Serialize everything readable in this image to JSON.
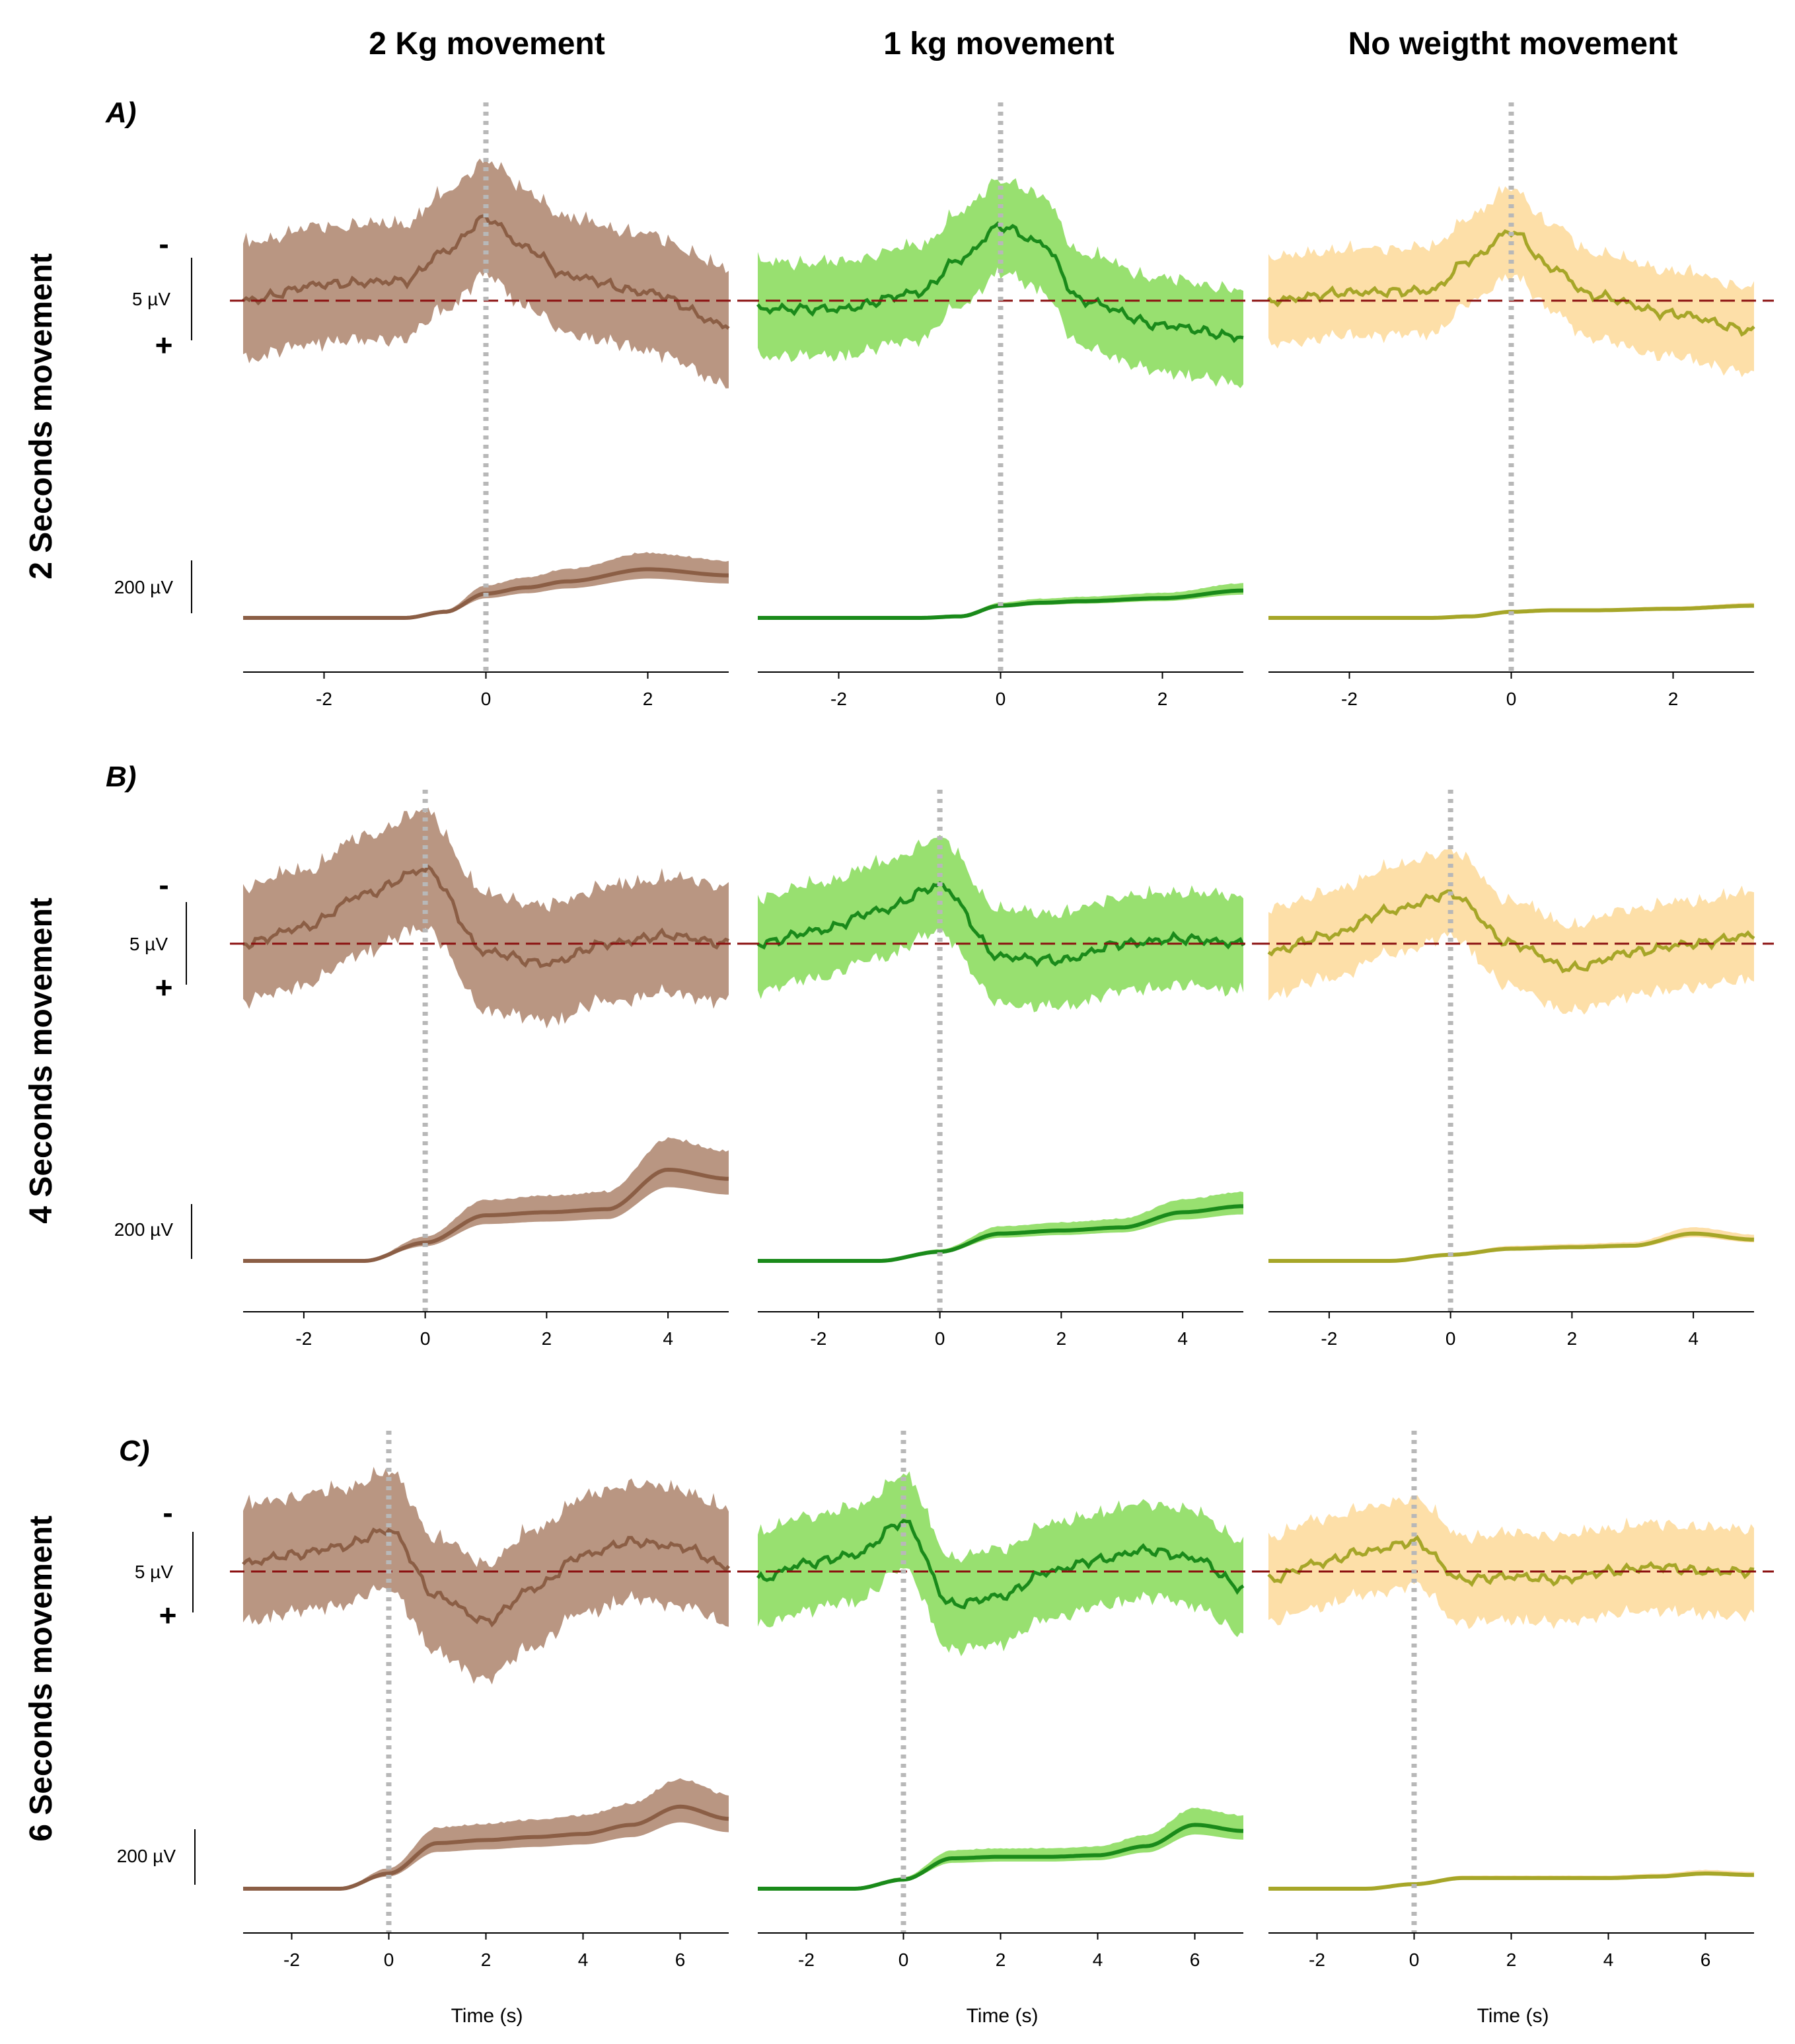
{
  "columns": [
    "2 Kg movement",
    "1 kg movement",
    "No weigtht movement"
  ],
  "rows": [
    {
      "panel": "A)",
      "title": "2 Seconds movement",
      "xlim": [
        -3,
        3
      ],
      "xticks": [
        -2,
        0,
        2
      ]
    },
    {
      "panel": "B)",
      "title": "4 Seconds movement",
      "xlim": [
        -3,
        5
      ],
      "xticks": [
        -2,
        0,
        2,
        4
      ]
    },
    {
      "panel": "C)",
      "title": "6 Seconds movement",
      "xlim": [
        -3,
        7
      ],
      "xticks": [
        -2,
        0,
        2,
        4,
        6
      ]
    }
  ],
  "labels": {
    "eeg_scale": "5 µV",
    "emg_scale": "200 µV",
    "neg_sign": "-",
    "pos_sign": "+",
    "xlabel": "Time (s)"
  },
  "colors": {
    "col0_line": "#8b5e45",
    "col0_band": "#b99682",
    "col1_line": "#1a8a1a",
    "col1_band": "#98e070",
    "col2_line": "#a6a628",
    "col2_band": "#fddfa8",
    "baseline": "#8b1010",
    "onset": "#b8b8b8"
  },
  "chart_data": [
    {
      "type": "line",
      "row": "2 Seconds movement",
      "column": "2 Kg movement",
      "x": [
        -3,
        -2,
        -1,
        -0.5,
        0,
        0.5,
        1,
        2,
        3
      ],
      "eeg_mean": [
        0,
        1,
        1.2,
        3,
        5,
        3.2,
        1.5,
        0.5,
        -1.5
      ],
      "emg_mean": [
        0,
        0,
        0,
        20,
        80,
        100,
        120,
        160,
        140
      ]
    },
    {
      "type": "line",
      "row": "2 Seconds movement",
      "column": "1 kg movement",
      "x": [
        -3,
        -2,
        -1,
        -0.5,
        0,
        0.5,
        1,
        2,
        3
      ],
      "eeg_mean": [
        -0.5,
        -0.5,
        0.5,
        2.5,
        4.5,
        3.5,
        0,
        -1.5,
        -2.2
      ],
      "emg_mean": [
        0,
        0,
        0,
        5,
        40,
        50,
        55,
        65,
        90
      ]
    },
    {
      "type": "line",
      "row": "2 Seconds movement",
      "column": "No weigtht movement",
      "x": [
        -3,
        -2,
        -1,
        -0.5,
        0,
        0.5,
        1,
        2,
        3
      ],
      "eeg_mean": [
        0,
        0.5,
        0.6,
        2.5,
        4.2,
        2,
        0.3,
        -0.8,
        -1.8
      ],
      "emg_mean": [
        0,
        0,
        0,
        5,
        20,
        25,
        25,
        30,
        40
      ]
    },
    {
      "type": "line",
      "row": "4 Seconds movement",
      "column": "2 Kg movement",
      "x": [
        -3,
        -2,
        -1,
        0,
        1,
        2,
        3,
        4,
        5
      ],
      "eeg_mean": [
        0,
        1,
        3,
        4.5,
        -0.5,
        -1.2,
        0,
        0.5,
        0
      ],
      "emg_mean": [
        0,
        0,
        0,
        60,
        150,
        160,
        170,
        300,
        270
      ]
    },
    {
      "type": "line",
      "row": "4 Seconds movement",
      "column": "1 kg movement",
      "x": [
        -3,
        -2,
        -1,
        0,
        1,
        2,
        3,
        4,
        5
      ],
      "eeg_mean": [
        0,
        0.8,
        2,
        3.5,
        -0.8,
        -1,
        0,
        0.3,
        0
      ],
      "emg_mean": [
        0,
        0,
        0,
        30,
        90,
        100,
        110,
        160,
        180
      ]
    },
    {
      "type": "line",
      "row": "4 Seconds movement",
      "column": "No weigtht movement",
      "x": [
        -3,
        -2,
        -1,
        0,
        1,
        2,
        3,
        4,
        5
      ],
      "eeg_mean": [
        -0.5,
        0.5,
        2,
        3,
        0,
        -1.5,
        -0.5,
        0,
        0.5
      ],
      "emg_mean": [
        0,
        0,
        0,
        20,
        40,
        45,
        50,
        90,
        70
      ]
    },
    {
      "type": "line",
      "row": "6 Seconds movement",
      "column": "2 Kg movement",
      "x": [
        -3,
        -2,
        -1,
        0,
        1,
        2,
        3,
        4,
        5,
        6,
        7
      ],
      "eeg_mean": [
        0.5,
        1,
        1.5,
        2.5,
        -1.5,
        -3,
        -1,
        1,
        1.8,
        1.5,
        0.3
      ],
      "emg_mean": [
        0,
        0,
        0,
        50,
        150,
        160,
        170,
        180,
        210,
        270,
        230
      ]
    },
    {
      "type": "line",
      "row": "6 Seconds movement",
      "column": "1 kg movement",
      "x": [
        -3,
        -2,
        -1,
        0,
        1,
        2,
        3,
        4,
        5,
        6,
        7
      ],
      "eeg_mean": [
        -0.5,
        0.5,
        1,
        3,
        -2,
        -1.5,
        0,
        0.7,
        1.3,
        0.8,
        -1
      ],
      "emg_mean": [
        0,
        0,
        0,
        30,
        100,
        105,
        105,
        110,
        140,
        210,
        190
      ]
    },
    {
      "type": "line",
      "row": "6 Seconds movement",
      "column": "No weigtht movement",
      "x": [
        -3,
        -2,
        -1,
        0,
        1,
        2,
        3,
        4,
        5,
        6,
        7
      ],
      "eeg_mean": [
        -0.5,
        0.5,
        1.2,
        1.8,
        -0.5,
        -0.3,
        -0.5,
        0,
        0.3,
        0,
        0
      ],
      "emg_mean": [
        0,
        0,
        0,
        15,
        35,
        35,
        35,
        35,
        40,
        50,
        45
      ]
    }
  ]
}
